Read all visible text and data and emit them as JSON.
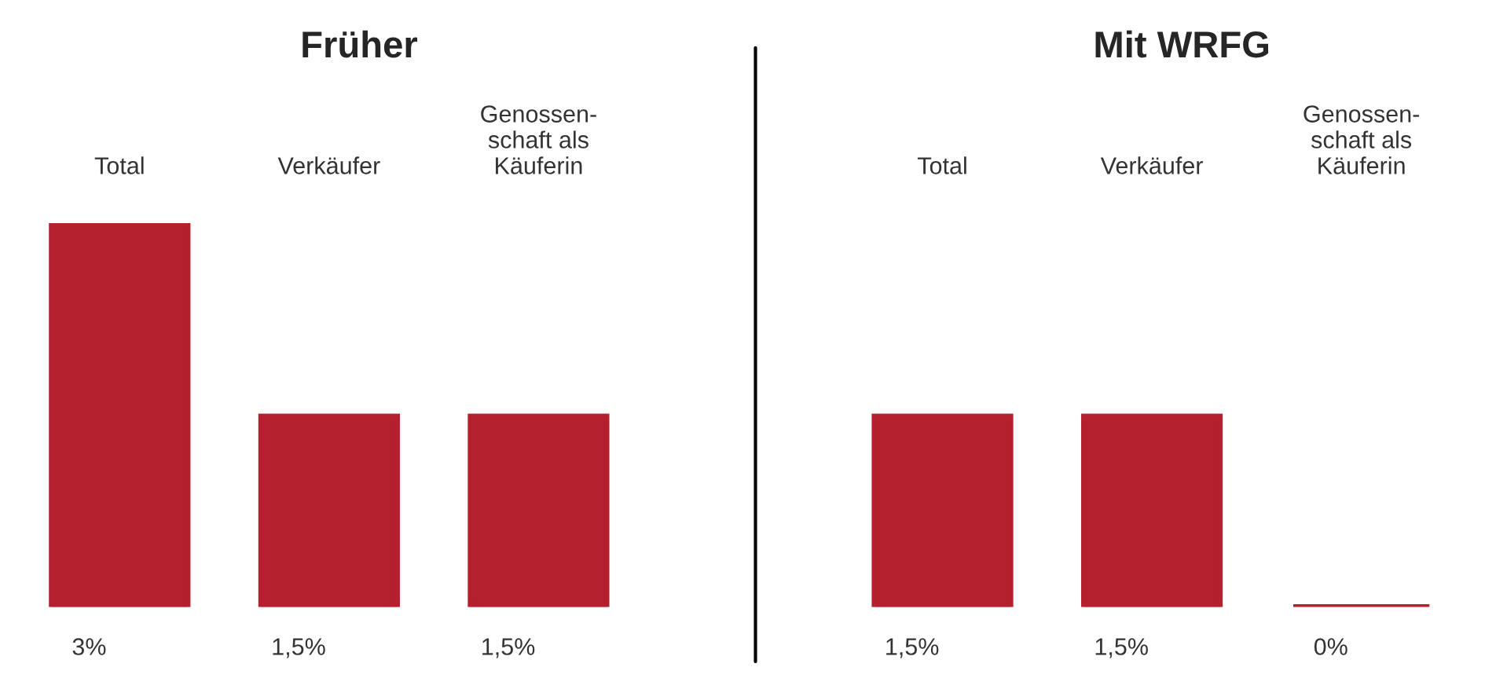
{
  "chart_data": [
    {
      "type": "bar",
      "title": "Früher",
      "categories": [
        "Total",
        "Verkäufer",
        "Genossen-\nschaft als\nKäuferin"
      ],
      "values": [
        3,
        1.5,
        1.5
      ],
      "color": "#b5202e",
      "value_labels": [
        "3%",
        "1,5%",
        "1,5%"
      ]
    },
    {
      "type": "bar",
      "title": "Mit WRFG",
      "categories": [
        "Total",
        "Verkäufer",
        "Genossen-\nschaft als\nKäuferin"
      ],
      "values": [
        1.5,
        1.5,
        0
      ],
      "color": "#b5202e",
      "value_labels": [
        "1,5%",
        "1,5%",
        "0%"
      ]
    }
  ]
}
